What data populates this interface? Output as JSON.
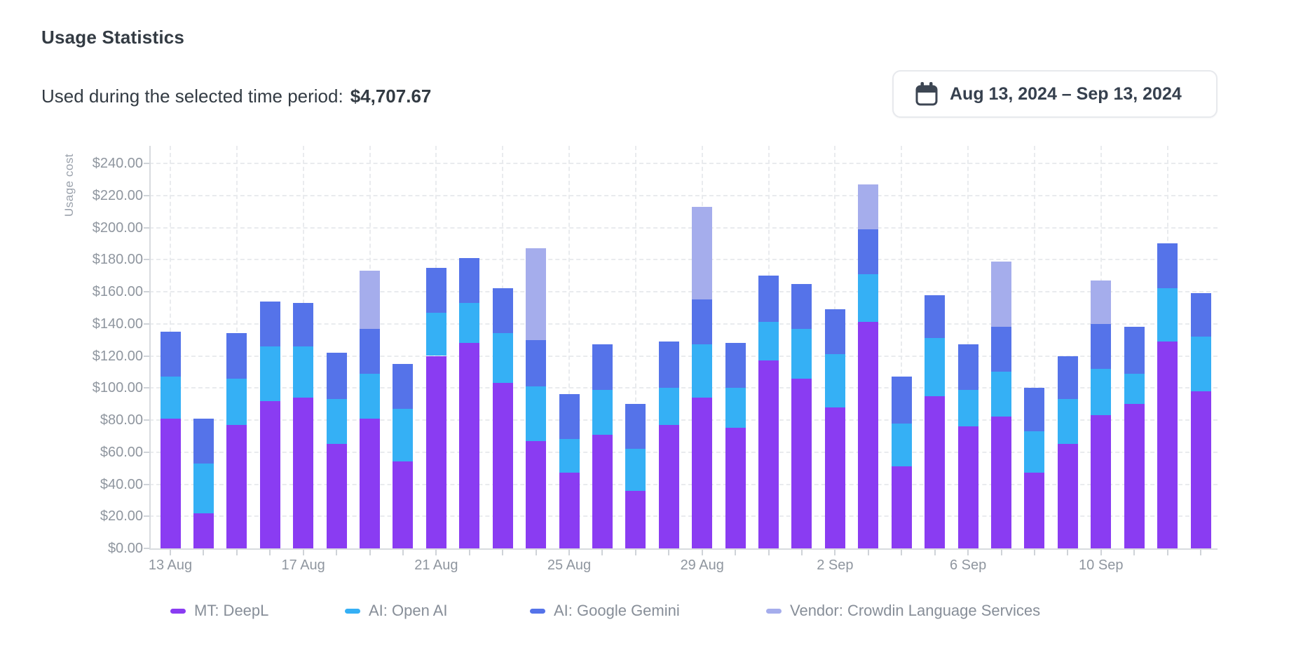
{
  "header": {
    "title": "Usage Statistics"
  },
  "summary": {
    "label": "Used during the selected time period:",
    "amount": "$4,707.67"
  },
  "date_range": {
    "label": "Aug 13, 2024 – Sep 13, 2024",
    "icon": "calendar-icon"
  },
  "legend": [
    {
      "label": "MT: DeepL",
      "color": "#8a3cf2"
    },
    {
      "label": "AI: Open AI",
      "color": "#35b0f5"
    },
    {
      "label": "AI: Google Gemini",
      "color": "#5573e9"
    },
    {
      "label": "Vendor: Crowdin Language Services",
      "color": "#a5adec"
    }
  ],
  "colors": {
    "axis_line": "#d8dbdf",
    "gridline": "#e9ebee",
    "tick_text": "#8f969f",
    "legend_text": "#878e98",
    "title_text": "#333b43",
    "button_text": "#36404e",
    "button_border": "#e7e9ed",
    "icon": "#3d4653"
  },
  "chart_data": {
    "type": "bar",
    "stacked": true,
    "title": "Usage Statistics",
    "ylabel": "Usage cost",
    "xlabel": "",
    "ylim": [
      0,
      240
    ],
    "y_tick_step": 20,
    "grid": true,
    "legend_position": "bottom",
    "total_label": "$4,707.67",
    "y_tick_labels": [
      "$0.00",
      "$20.00",
      "$40.00",
      "$60.00",
      "$80.00",
      "$100.00",
      "$120.00",
      "$140.00",
      "$160.00",
      "$180.00",
      "$200.00",
      "$220.00",
      "$240.00"
    ],
    "x_tick_labels": [
      {
        "index": 0,
        "label": "13 Aug"
      },
      {
        "index": 4,
        "label": "17 Aug"
      },
      {
        "index": 8,
        "label": "21 Aug"
      },
      {
        "index": 12,
        "label": "25 Aug"
      },
      {
        "index": 16,
        "label": "29 Aug"
      },
      {
        "index": 20,
        "label": "2 Sep"
      },
      {
        "index": 24,
        "label": "6 Sep"
      },
      {
        "index": 28,
        "label": "10 Sep"
      }
    ],
    "categories": [
      "13 Aug",
      "14 Aug",
      "15 Aug",
      "16 Aug",
      "17 Aug",
      "18 Aug",
      "19 Aug",
      "20 Aug",
      "21 Aug",
      "22 Aug",
      "23 Aug",
      "24 Aug",
      "25 Aug",
      "26 Aug",
      "27 Aug",
      "28 Aug",
      "29 Aug",
      "30 Aug",
      "31 Aug",
      "1 Sep",
      "2 Sep",
      "3 Sep",
      "4 Sep",
      "5 Sep",
      "6 Sep",
      "7 Sep",
      "8 Sep",
      "9 Sep",
      "10 Sep",
      "11 Sep",
      "12 Sep",
      "13 Sep"
    ],
    "series": [
      {
        "name": "MT: DeepL",
        "color": "#8a3cf2",
        "values": [
          81,
          22,
          77,
          92,
          94,
          65,
          81,
          54,
          120,
          128,
          103,
          67,
          47,
          71,
          36,
          77,
          94,
          75,
          117,
          106,
          88,
          141,
          51,
          95,
          76,
          82,
          47,
          65,
          83,
          90,
          129,
          98
        ]
      },
      {
        "name": "AI: Open AI",
        "color": "#35b0f5",
        "values": [
          26,
          31,
          29,
          34,
          32,
          28,
          28,
          33,
          27,
          25,
          31,
          34,
          21,
          28,
          26,
          23,
          33,
          25,
          24,
          31,
          33,
          30,
          27,
          36,
          23,
          28,
          26,
          28,
          29,
          19,
          33,
          34
        ]
      },
      {
        "name": "AI: Google Gemini",
        "color": "#5573e9",
        "values": [
          28,
          28,
          28,
          28,
          27,
          29,
          28,
          28,
          28,
          28,
          28,
          29,
          28,
          28,
          28,
          29,
          28,
          28,
          29,
          28,
          28,
          28,
          29,
          27,
          28,
          28,
          27,
          27,
          28,
          29,
          28,
          27
        ]
      },
      {
        "name": "Vendor: Crowdin Language Services",
        "color": "#a5adec",
        "values": [
          0,
          0,
          0,
          0,
          0,
          0,
          36,
          0,
          0,
          0,
          0,
          57,
          0,
          0,
          0,
          0,
          58,
          0,
          0,
          0,
          0,
          28,
          0,
          0,
          0,
          41,
          0,
          0,
          27,
          0,
          0,
          0
        ]
      }
    ]
  }
}
